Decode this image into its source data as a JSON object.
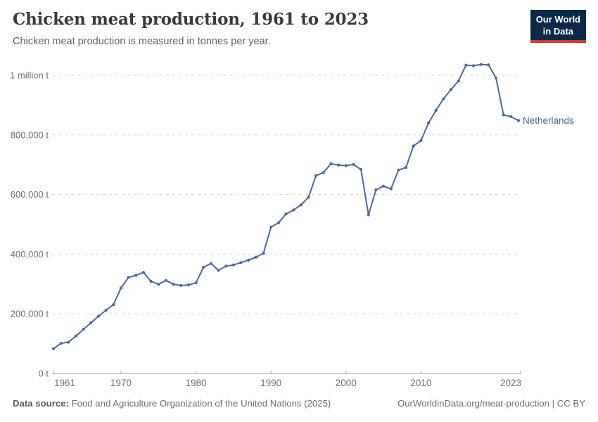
{
  "header": {
    "title": "Chicken meat production, 1961 to 2023",
    "subtitle": "Chicken meat production is measured in tonnes per year."
  },
  "logo": {
    "line1": "Our World",
    "line2": "in Data"
  },
  "chart_data": {
    "type": "line",
    "title": "Chicken meat production, 1961 to 2023",
    "unit": "tonnes per year",
    "entity": "Netherlands",
    "line_color": "#4c6a9c",
    "grid": "dashed-horizontal",
    "legend_position": "end-of-line-label",
    "ylim": [
      0,
      1000000
    ],
    "xlim": [
      1961,
      2023
    ],
    "x_ticks": [
      "1961",
      "1970",
      "1980",
      "1990",
      "2000",
      "2010",
      "2023"
    ],
    "y_ticks": [
      {
        "value": 0,
        "label": "0 t"
      },
      {
        "value": 200000,
        "label": "200,000 t"
      },
      {
        "value": 400000,
        "label": "400,000 t"
      },
      {
        "value": 600000,
        "label": "600,000 t"
      },
      {
        "value": 800000,
        "label": "800,000 t"
      },
      {
        "value": 1000000,
        "label": "1 million t"
      }
    ],
    "x": [
      1961,
      1962,
      1963,
      1964,
      1965,
      1966,
      1967,
      1968,
      1969,
      1970,
      1971,
      1972,
      1973,
      1974,
      1975,
      1976,
      1977,
      1978,
      1979,
      1980,
      1981,
      1982,
      1983,
      1984,
      1985,
      1986,
      1987,
      1988,
      1989,
      1990,
      1991,
      1992,
      1993,
      1994,
      1995,
      1996,
      1997,
      1998,
      1999,
      2000,
      2001,
      2002,
      2003,
      2004,
      2005,
      2006,
      2007,
      2008,
      2009,
      2010,
      2011,
      2012,
      2013,
      2014,
      2015,
      2016,
      2017,
      2018,
      2019,
      2020,
      2021,
      2022,
      2023
    ],
    "series": [
      {
        "name": "Netherlands",
        "values": [
          83000,
          101000,
          105000,
          126000,
          148000,
          170000,
          192000,
          212000,
          231000,
          287000,
          322000,
          329000,
          339000,
          309000,
          299000,
          312000,
          299000,
          295000,
          297000,
          304000,
          356000,
          369000,
          346000,
          360000,
          364000,
          372000,
          380000,
          390000,
          403000,
          491000,
          505000,
          535000,
          548000,
          565000,
          591000,
          663000,
          674000,
          703000,
          699000,
          697000,
          701000,
          684000,
          532000,
          616000,
          628000,
          619000,
          682000,
          691000,
          763000,
          781000,
          840000,
          882000,
          921000,
          952000,
          981000,
          1034000,
          1032000,
          1036000,
          1035000,
          991000,
          867000,
          861000,
          848000
        ]
      }
    ]
  },
  "footer": {
    "source_label": "Data source:",
    "source_text": "Food and Agriculture Organization of the United Nations (2025)",
    "link": "OurWorldinData.org/meat-production | CC BY"
  },
  "colors": {
    "accent_blue": "#4c6a9c",
    "logo_background": "#0b2949",
    "logo_red": "#d7382e"
  }
}
